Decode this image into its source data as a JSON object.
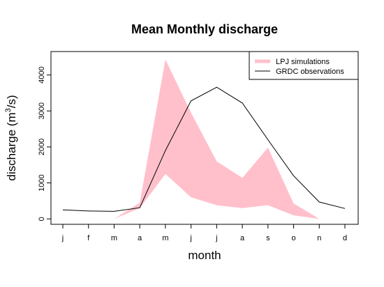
{
  "chart_data": {
    "type": "area",
    "title": "Mean Monthly discharge",
    "xlabel": "month",
    "ylabel_main": "discharge (m",
    "ylabel_sup": "3",
    "ylabel_tail": "/s)",
    "categories": [
      "j",
      "f",
      "m",
      "a",
      "m",
      "j",
      "j",
      "a",
      "s",
      "o",
      "n",
      "d"
    ],
    "ylim": [
      -150,
      4650
    ],
    "yticks": [
      0,
      1000,
      2000,
      3000,
      4000
    ],
    "ytick_labels": [
      "0",
      "1000",
      "2000",
      "3000",
      "4000"
    ],
    "grid": false,
    "legend_position": "top-right",
    "series": [
      {
        "name": "LPJ simulations",
        "kind": "band",
        "color": "#ffc0cb",
        "upper": [
          0,
          0,
          0,
          450,
          4430,
          2950,
          1600,
          1140,
          1980,
          430,
          0,
          0
        ],
        "lower": [
          0,
          0,
          0,
          300,
          1250,
          600,
          380,
          300,
          380,
          100,
          0,
          0
        ]
      },
      {
        "name": "GRDC observations",
        "kind": "line",
        "color": "#000000",
        "values": [
          250,
          220,
          210,
          310,
          1900,
          3280,
          3660,
          3220,
          2200,
          1200,
          470,
          290
        ]
      }
    ]
  }
}
